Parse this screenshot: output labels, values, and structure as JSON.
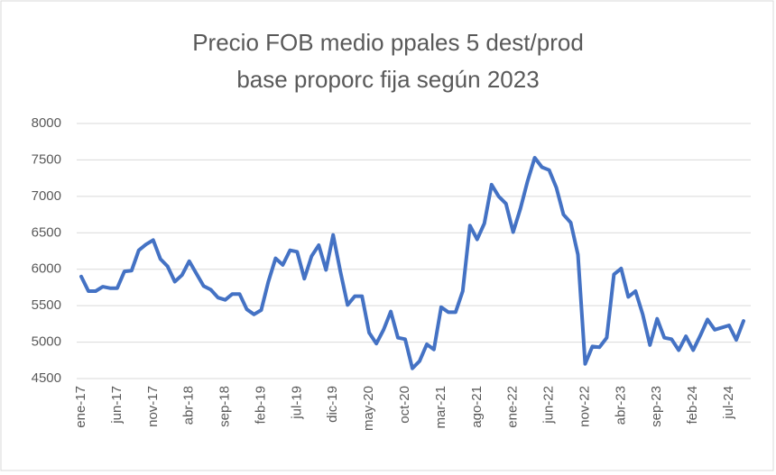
{
  "chart_data": {
    "type": "line",
    "title": [
      "Precio FOB medio ppales 5 dest/prod",
      "base proporc fija según 2023"
    ],
    "categories": [
      "ene-17",
      null,
      null,
      null,
      null,
      "jun-17",
      null,
      null,
      null,
      null,
      "nov-17",
      null,
      null,
      null,
      null,
      "abr-18",
      null,
      null,
      null,
      null,
      "sep-18",
      null,
      null,
      null,
      null,
      "feb-19",
      null,
      null,
      null,
      null,
      "jul-19",
      null,
      null,
      null,
      null,
      "dic-19",
      null,
      null,
      null,
      null,
      "may-20",
      null,
      null,
      null,
      null,
      "oct-20",
      null,
      null,
      null,
      null,
      "mar-21",
      null,
      null,
      null,
      null,
      "ago-21",
      null,
      null,
      null,
      null,
      "ene-22",
      null,
      null,
      null,
      null,
      "jun-22",
      null,
      null,
      null,
      null,
      "nov-22",
      null,
      null,
      null,
      null,
      "abr-23",
      null,
      null,
      null,
      null,
      "sep-23",
      null,
      null,
      null,
      null,
      "feb-24",
      null,
      null,
      null,
      null,
      "jul-24",
      null,
      null
    ],
    "series": [
      {
        "name": "Precio FOB medio",
        "color": "#4472c4",
        "values": [
          5900,
          5700,
          5700,
          5760,
          5740,
          5740,
          5970,
          5980,
          6260,
          6340,
          6400,
          6140,
          6040,
          5830,
          5920,
          6110,
          5940,
          5770,
          5720,
          5610,
          5580,
          5660,
          5660,
          5450,
          5380,
          5440,
          5830,
          6150,
          6060,
          6260,
          6240,
          5870,
          6180,
          6330,
          5990,
          6470,
          5970,
          5510,
          5630,
          5630,
          5130,
          4980,
          5170,
          5420,
          5060,
          5040,
          4640,
          4740,
          4970,
          4900,
          5480,
          5410,
          5410,
          5700,
          6600,
          6410,
          6630,
          7160,
          7000,
          6900,
          6510,
          6830,
          7210,
          7530,
          7400,
          7360,
          7120,
          6750,
          6640,
          6200,
          4700,
          4940,
          4930,
          5060,
          5930,
          6010,
          5620,
          5700,
          5380,
          4960,
          5320,
          5060,
          5040,
          4890,
          5080,
          4890,
          5090,
          5310,
          5170,
          5200,
          5230,
          5030,
          5290
        ]
      }
    ],
    "ylim": [
      4500,
      8000
    ],
    "yticks": [
      4500,
      5000,
      5500,
      6000,
      6500,
      7000,
      7500,
      8000
    ],
    "grid": true
  }
}
